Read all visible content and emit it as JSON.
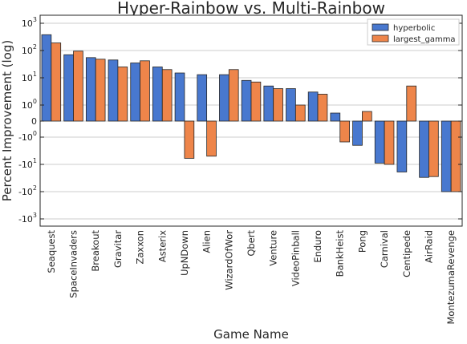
{
  "chart_data": {
    "type": "bar",
    "title": "Hyper-Rainbow vs. Multi-Rainbow",
    "xlabel": "Game Name",
    "ylabel": "Percent Improvement (log)",
    "yscale": "symlog",
    "ylim": [
      -1000,
      1000
    ],
    "grid": "horizontal",
    "legend_position": "top-right",
    "yticks": [
      {
        "value": 1000,
        "base": "10",
        "exp": "3"
      },
      {
        "value": 100,
        "base": "10",
        "exp": "2"
      },
      {
        "value": 10,
        "base": "10",
        "exp": "1"
      },
      {
        "value": 1,
        "base": "10",
        "exp": "0"
      },
      {
        "value": 0,
        "base": "0",
        "exp": ""
      },
      {
        "value": -1,
        "base": "-10",
        "exp": "0"
      },
      {
        "value": -10,
        "base": "-10",
        "exp": "1"
      },
      {
        "value": -100,
        "base": "-10",
        "exp": "2"
      },
      {
        "value": -1000,
        "base": "-10",
        "exp": "3"
      }
    ],
    "categories": [
      "Seaquest",
      "SpaceInvaders",
      "Breakout",
      "Gravitar",
      "Zaxxon",
      "Asterix",
      "UpNDown",
      "Alien",
      "WizardOfWor",
      "Qbert",
      "Venture",
      "VideoPinball",
      "Enduro",
      "BankHeist",
      "Pong",
      "Carnival",
      "Centipede",
      "AirRaid",
      "MontezumaRevenge"
    ],
    "series": [
      {
        "name": "hyperbolic",
        "color": "#4878cf",
        "values": [
          380,
          70,
          55,
          45,
          35,
          25,
          15,
          13,
          13,
          8,
          5,
          4,
          3,
          0.5,
          -2,
          -9,
          -19,
          -30,
          -100
        ]
      },
      {
        "name": "largest_gamma",
        "color": "#ee854a",
        "values": [
          190,
          95,
          48,
          25,
          42,
          20,
          -6,
          -5,
          20,
          7,
          4,
          1,
          2.5,
          -1.5,
          0.6,
          -10,
          5,
          -28,
          -100
        ]
      }
    ]
  }
}
